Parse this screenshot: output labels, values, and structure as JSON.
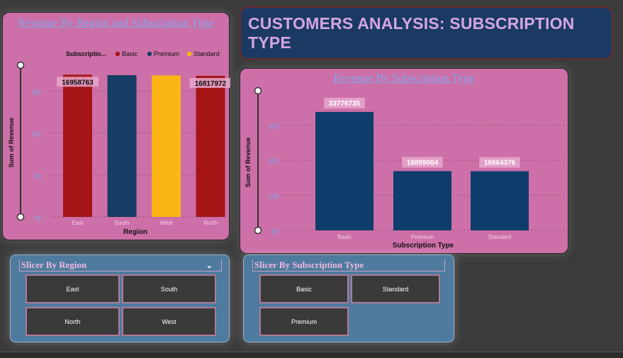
{
  "header": {
    "title": "CUSTOMERS ANALYSIS: SUBSCRIPTION TYPE"
  },
  "chart_data": [
    {
      "type": "bar",
      "title": "Revenue By Region and Subscription Type",
      "xlabel": "Region",
      "ylabel": "Sum of Revenue",
      "legend_title": "Subscriptio...",
      "legend_position": "top-right",
      "categories": [
        "East",
        "South",
        "West",
        "North"
      ],
      "legend": [
        {
          "name": "Basic",
          "color": "#a51515"
        },
        {
          "name": "Premium",
          "color": "#163d63"
        },
        {
          "name": "Standard",
          "color": "#fbb615"
        }
      ],
      "bars": [
        {
          "category": "East",
          "series": "Basic",
          "value": 16958763,
          "label": "16958763"
        },
        {
          "category": "South",
          "series": "Premium",
          "value": 16899064,
          "label": ""
        },
        {
          "category": "West",
          "series": "Standard",
          "value": 16864376,
          "label": ""
        },
        {
          "category": "North",
          "series": "Basic",
          "value": 16817972,
          "label": "16817972"
        }
      ],
      "yticks": [
        {
          "value": 0,
          "label": "0M"
        },
        {
          "value": 5000000,
          "label": "5M"
        },
        {
          "value": 10000000,
          "label": "10M"
        },
        {
          "value": 15000000,
          "label": "15M"
        }
      ],
      "ylim": [
        0,
        18000000
      ],
      "grid": true
    },
    {
      "type": "bar",
      "title": "Revenue By Subscription Type",
      "xlabel": "Subscription Type",
      "ylabel": "Sum of Revenue",
      "categories": [
        "Basic",
        "Premium",
        "Standard"
      ],
      "values": [
        33776735,
        16899064,
        16864376
      ],
      "value_labels": [
        "33776735",
        "16899064",
        "16864376"
      ],
      "bar_color": "#0e3d6b",
      "yticks": [
        {
          "value": 0,
          "label": "0M"
        },
        {
          "value": 10000000,
          "label": "10M"
        },
        {
          "value": 20000000,
          "label": "20M"
        },
        {
          "value": 30000000,
          "label": "30M"
        }
      ],
      "ylim": [
        0,
        38000000
      ],
      "grid": true
    }
  ],
  "slicers": {
    "region": {
      "title": "Slicer By Region",
      "options": [
        "East",
        "South",
        "North",
        "West"
      ]
    },
    "subscription": {
      "title": "Slicer By Subscription Type",
      "options": [
        "Basic",
        "Standard",
        "Premium"
      ]
    }
  }
}
